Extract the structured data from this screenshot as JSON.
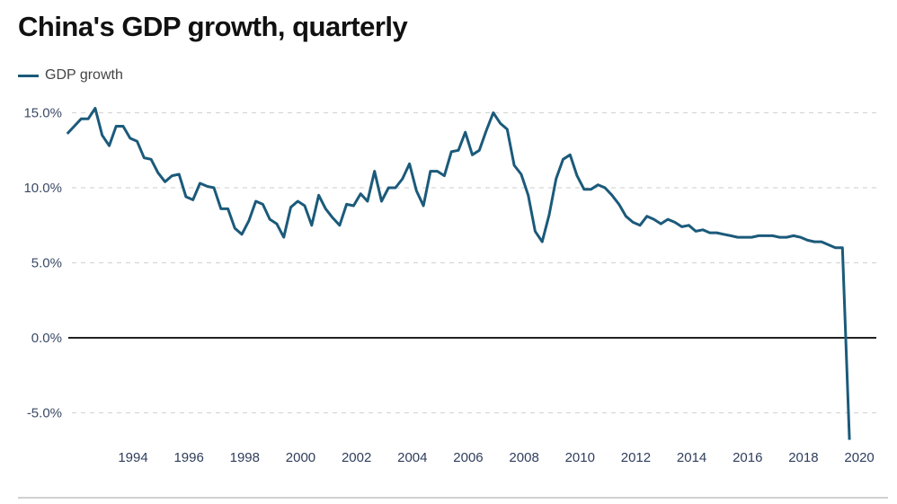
{
  "chart_data": {
    "type": "line",
    "title": "China's GDP growth, quarterly",
    "xlabel": "",
    "ylabel": "",
    "legend": {
      "position": "top-left",
      "entries": [
        "GDP growth"
      ]
    },
    "series_color": "#1b5a7a",
    "zero_line_color": "#222222",
    "grid": true,
    "ylim": [
      -7,
      15.5
    ],
    "yticks": [
      15,
      10,
      5,
      0,
      -5
    ],
    "ytick_labels": [
      "15.0%",
      "10.0%",
      "5.0%",
      "0.0%",
      "-5.0%"
    ],
    "xticks": [
      1994,
      1996,
      1998,
      2000,
      2002,
      2004,
      2006,
      2008,
      2010,
      2012,
      2014,
      2016,
      2018,
      2020
    ],
    "xtick_labels": [
      "1994",
      "1996",
      "1998",
      "2000",
      "2002",
      "2004",
      "2006",
      "2008",
      "2010",
      "2012",
      "2014",
      "2016",
      "2018",
      "2020"
    ],
    "start": "1992 Q1",
    "frequency": "quarterly",
    "series": [
      {
        "name": "GDP growth",
        "values": [
          13.6,
          14.1,
          14.6,
          14.6,
          15.3,
          13.5,
          12.8,
          14.1,
          14.1,
          13.3,
          13.1,
          12.0,
          11.9,
          11.0,
          10.4,
          10.8,
          10.9,
          9.4,
          9.2,
          10.3,
          10.1,
          10.0,
          8.6,
          8.6,
          7.3,
          6.9,
          7.8,
          9.1,
          8.9,
          7.9,
          7.6,
          6.7,
          8.7,
          9.1,
          8.8,
          7.5,
          9.5,
          8.6,
          8.0,
          7.5,
          8.9,
          8.8,
          9.6,
          9.1,
          11.1,
          9.1,
          10.0,
          10.0,
          10.6,
          11.6,
          9.8,
          8.8,
          11.1,
          11.1,
          10.8,
          12.4,
          12.5,
          13.7,
          12.2,
          12.5,
          13.8,
          15.0,
          14.3,
          13.9,
          11.5,
          10.9,
          9.5,
          7.1,
          6.4,
          8.2,
          10.6,
          11.9,
          12.2,
          10.8,
          9.9,
          9.9,
          10.2,
          10.0,
          9.5,
          8.9,
          8.1,
          7.7,
          7.5,
          8.1,
          7.9,
          7.6,
          7.9,
          7.7,
          7.4,
          7.5,
          7.1,
          7.2,
          7.0,
          7.0,
          6.9,
          6.8,
          6.7,
          6.7,
          6.7,
          6.8,
          6.8,
          6.8,
          6.7,
          6.7,
          6.8,
          6.7,
          6.5,
          6.4,
          6.4,
          6.2,
          6.0,
          6.0,
          -6.8
        ]
      }
    ]
  }
}
